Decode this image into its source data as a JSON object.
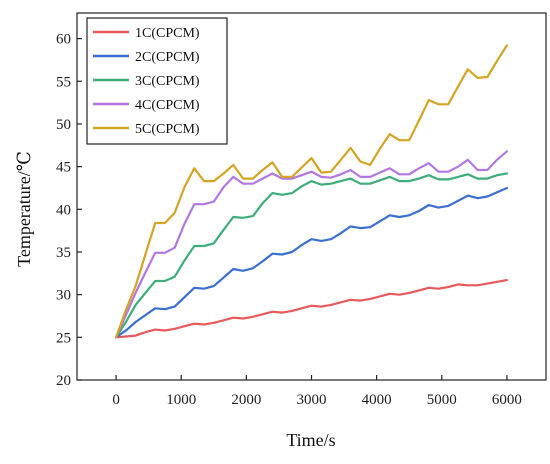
{
  "chart_data": {
    "type": "line",
    "xlabel": "Time/s",
    "ylabel": "Temperature/℃",
    "xlim": [
      -600,
      6600
    ],
    "ylim": [
      20,
      63
    ],
    "xticks": [
      0,
      1000,
      2000,
      3000,
      4000,
      5000,
      6000
    ],
    "yticks": [
      20,
      25,
      30,
      35,
      40,
      45,
      50,
      55,
      60
    ],
    "grid": false,
    "legend_position": "top-left",
    "series": [
      {
        "name": "1C(CPCM)",
        "color": "#e8595c",
        "x": [
          0,
          150,
          300,
          450,
          600,
          750,
          900,
          1050,
          1200,
          1350,
          1500,
          1650,
          1800,
          1950,
          2100,
          2250,
          2400,
          2550,
          2700,
          2850,
          3000,
          3150,
          3300,
          3450,
          3600,
          3750,
          3900,
          4050,
          4200,
          4350,
          4500,
          4650,
          4800,
          4950,
          5100,
          5250,
          5400,
          5550,
          5700,
          5850,
          6000
        ],
        "y": [
          25.0,
          25.1,
          25.2,
          25.6,
          25.9,
          25.8,
          26.0,
          26.3,
          26.6,
          26.5,
          26.7,
          27.0,
          27.3,
          27.2,
          27.4,
          27.7,
          28.0,
          27.9,
          28.1,
          28.4,
          28.7,
          28.6,
          28.8,
          29.1,
          29.4,
          29.3,
          29.5,
          29.8,
          30.1,
          30.0,
          30.2,
          30.5,
          30.8,
          30.7,
          30.9,
          31.2,
          31.1,
          31.1,
          31.3,
          31.5,
          31.7
        ]
      },
      {
        "name": "2C(CPCM)",
        "color": "#3a6fd1",
        "x": [
          0,
          150,
          300,
          450,
          600,
          750,
          900,
          1050,
          1200,
          1350,
          1500,
          1650,
          1800,
          1950,
          2100,
          2250,
          2400,
          2550,
          2700,
          2850,
          3000,
          3150,
          3300,
          3450,
          3600,
          3750,
          3900,
          4050,
          4200,
          4350,
          4500,
          4650,
          4800,
          4950,
          5100,
          5250,
          5400,
          5550,
          5700,
          5850,
          6000
        ],
        "y": [
          25.0,
          25.8,
          26.8,
          27.6,
          28.4,
          28.3,
          28.6,
          29.7,
          30.8,
          30.7,
          31.0,
          32.0,
          33.0,
          32.8,
          33.1,
          33.9,
          34.8,
          34.7,
          35.0,
          35.8,
          36.5,
          36.3,
          36.5,
          37.2,
          38.0,
          37.8,
          37.9,
          38.6,
          39.3,
          39.1,
          39.3,
          39.8,
          40.5,
          40.2,
          40.4,
          41.0,
          41.6,
          41.3,
          41.5,
          42.0,
          42.5
        ]
      },
      {
        "name": "3C(CPCM)",
        "color": "#3dae7a",
        "x": [
          0,
          150,
          300,
          450,
          600,
          750,
          900,
          1050,
          1200,
          1350,
          1500,
          1650,
          1800,
          1950,
          2100,
          2250,
          2400,
          2550,
          2700,
          2850,
          3000,
          3150,
          3300,
          3450,
          3600,
          3750,
          3900,
          4050,
          4200,
          4350,
          4500,
          4650,
          4800,
          4950,
          5100,
          5250,
          5400,
          5550,
          5700,
          5850,
          6000
        ],
        "y": [
          25.0,
          26.8,
          28.8,
          30.2,
          31.6,
          31.6,
          32.1,
          34.0,
          35.7,
          35.7,
          36.0,
          37.6,
          39.1,
          39.0,
          39.2,
          40.7,
          41.9,
          41.7,
          41.9,
          42.7,
          43.3,
          42.9,
          43.0,
          43.3,
          43.6,
          43.0,
          43.0,
          43.4,
          43.8,
          43.3,
          43.3,
          43.6,
          44.0,
          43.5,
          43.5,
          43.8,
          44.1,
          43.6,
          43.6,
          44.0,
          44.2
        ]
      },
      {
        "name": "4C(CPCM)",
        "color": "#b277e0",
        "x": [
          0,
          150,
          300,
          450,
          600,
          750,
          900,
          1050,
          1200,
          1350,
          1500,
          1650,
          1800,
          1950,
          2100,
          2250,
          2400,
          2550,
          2700,
          2850,
          3000,
          3150,
          3300,
          3450,
          3600,
          3750,
          3900,
          4050,
          4200,
          4350,
          4500,
          4650,
          4800,
          4950,
          5100,
          5250,
          5400,
          5550,
          5700,
          5850,
          6000
        ],
        "y": [
          25.0,
          27.6,
          30.2,
          32.6,
          34.9,
          34.9,
          35.5,
          38.3,
          40.6,
          40.6,
          40.9,
          42.6,
          43.8,
          43.0,
          43.0,
          43.6,
          44.2,
          43.6,
          43.6,
          44.0,
          44.4,
          43.8,
          43.7,
          44.1,
          44.6,
          43.8,
          43.8,
          44.3,
          44.8,
          44.1,
          44.1,
          44.8,
          45.4,
          44.4,
          44.4,
          45.0,
          45.8,
          44.6,
          44.6,
          45.8,
          46.8
        ]
      },
      {
        "name": "5C(CPCM)",
        "color": "#d4a424",
        "x": [
          0,
          150,
          300,
          450,
          600,
          750,
          900,
          1050,
          1200,
          1350,
          1500,
          1650,
          1800,
          1950,
          2100,
          2250,
          2400,
          2550,
          2700,
          2850,
          3000,
          3150,
          3300,
          3450,
          3600,
          3750,
          3900,
          4050,
          4200,
          4350,
          4500,
          4650,
          4800,
          4950,
          5100,
          5250,
          5400,
          5550,
          5700,
          5850,
          6000
        ],
        "y": [
          25.0,
          28.2,
          31.0,
          34.7,
          38.4,
          38.4,
          39.6,
          42.6,
          44.8,
          43.3,
          43.3,
          44.2,
          45.2,
          43.6,
          43.6,
          44.6,
          45.5,
          43.8,
          43.8,
          44.9,
          46.0,
          44.3,
          44.4,
          45.8,
          47.2,
          45.6,
          45.2,
          47.1,
          48.8,
          48.1,
          48.1,
          50.4,
          52.8,
          52.3,
          52.3,
          54.4,
          56.4,
          55.4,
          55.5,
          57.4,
          59.2
        ]
      }
    ]
  }
}
